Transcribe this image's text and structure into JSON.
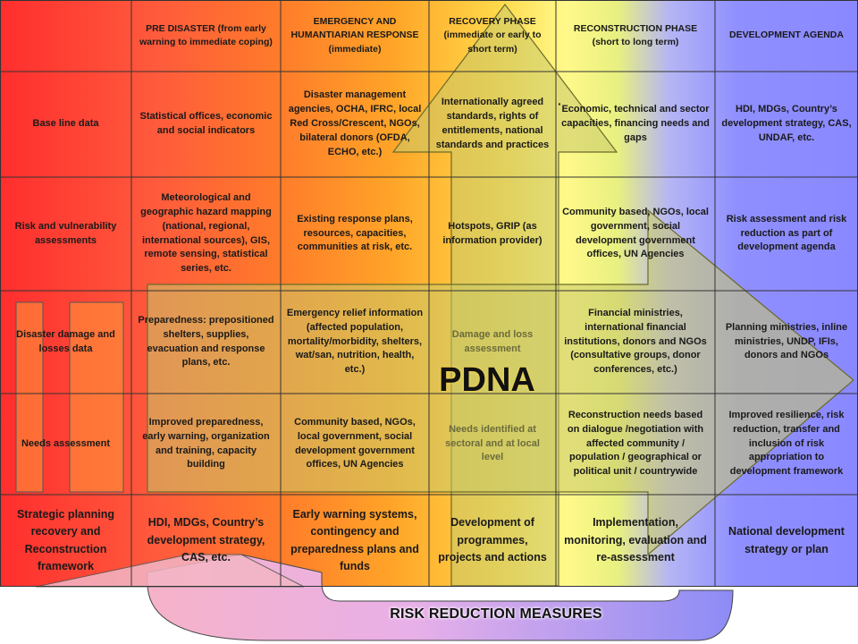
{
  "headers": [
    "",
    "PRE DISASTER (from early warning to immediate coping)",
    "EMERGENCY AND HUMANTIARIAN RESPONSE (immediate)",
    "RECOVERY PHASE (immediate or early to short term)",
    "RECONSTRUCTION PHASE (short to long term)",
    "DEVELOPMENT AGENDA"
  ],
  "rows": [
    {
      "label": "Base line data",
      "cells": [
        "Statistical offices, economic and social indicators",
        "Disaster management agencies, OCHA, IFRC, local Red Cross/Crescent, NGOs, bilateral donors (OFDA, ECHO, etc.)",
        "Internationally agreed standards, rights of entitlements, national standards and practices",
        "Economic, technical and sector capacities, financing needs and gaps",
        "HDI, MDGs, Country’s development strategy, CAS, UNDAF, etc."
      ]
    },
    {
      "label": "Risk and vulnerability assessments",
      "cells": [
        "Meteorological and geographic hazard mapping (national, regional, international sources), GIS, remote sensing, statistical series, etc.",
        "Existing response plans, resources, capacities, communities at risk, etc.",
        "Hotspots, GRIP (as information provider)",
        "Community based, NGOs, local government, social development government offices, UN Agencies",
        "Risk assessment and risk reduction as part of development agenda"
      ]
    },
    {
      "label": "Disaster damage and losses data",
      "cells": [
        "Preparedness: prepositioned shelters, supplies, evacuation and response plans, etc.",
        "Emergency relief information (affected population, mortality/morbidity, shelters, wat/san, nutrition, health, etc.)",
        "Damage and loss assessment",
        "Financial ministries, international financial institutions, donors and NGOs (consultative groups, donor conferences, etc.)",
        "Planning ministries, inline ministries, UNDP, IFIs, donors and NGOs"
      ]
    },
    {
      "label": "Needs assessment",
      "cells": [
        "Improved preparedness, early warning, organization and training, capacity building",
        "Community based, NGOs, local government, social development government offices, UN Agencies",
        "Needs identified at sectoral and at local level",
        "Reconstruction needs based on dialogue /negotiation with affected community / population / geographical or political unit / countrywide",
        "Improved resilience, risk reduction, transfer and inclusion of risk appropriation to development framework"
      ]
    },
    {
      "label": "Strategic planning recovery and Reconstruction framework",
      "cells": [
        "HDI, MDGs, Country’s development strategy, CAS, etc.",
        "Early warning systems, contingency and preparedness plans and funds",
        "Development of programmes, projects and actions",
        "Implementation, monitoring, evaluation and re-assessment",
        "National development strategy or plan"
      ]
    }
  ],
  "center_label": "PDNA",
  "bottom_label": "RISK REDUCTION MEASURES",
  "stray_mark": "·",
  "colors": {
    "gradient_start": "#ff2e2e",
    "gradient_mid": "#ffd84a",
    "gradient_end": "#8a88ff",
    "arrow_fill": "#c8c86a",
    "bottom_loop": "#d9a6e0",
    "grid_line": "#333333"
  }
}
